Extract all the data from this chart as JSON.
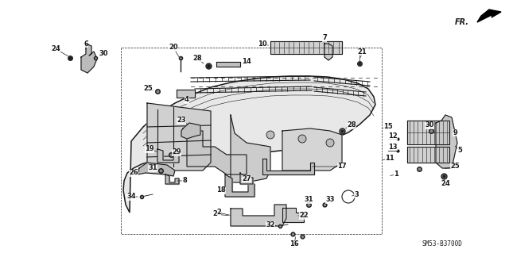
{
  "bg_color": "#ffffff",
  "diagram_code": "SM53-B3700D",
  "fig_width": 6.4,
  "fig_height": 3.19,
  "dpi": 100,
  "line_color": "#1a1a1a",
  "label_fontsize": 6.0
}
